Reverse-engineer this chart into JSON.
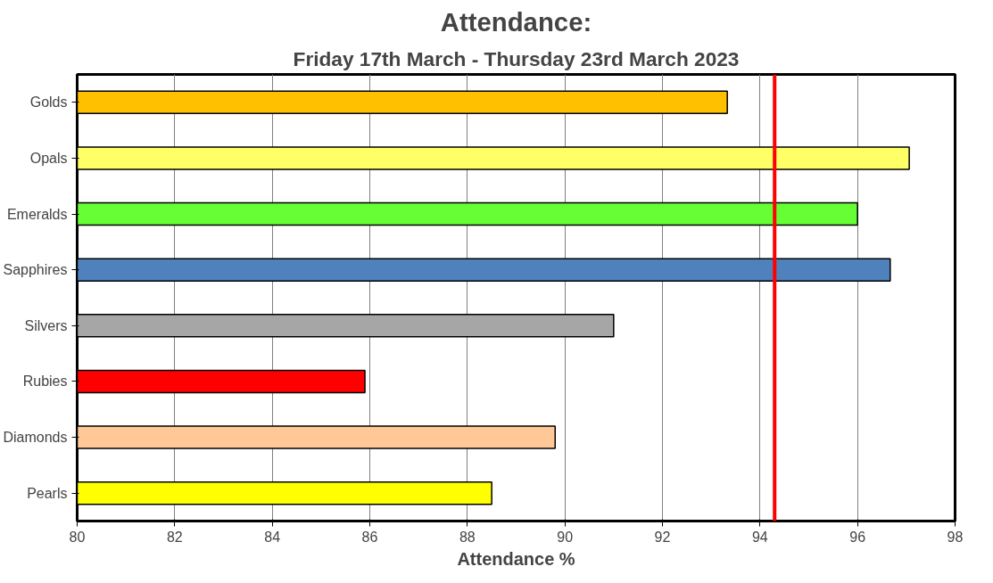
{
  "chart_data": {
    "type": "bar",
    "orientation": "horizontal",
    "title": "Attendance:",
    "subtitle": "Friday 17th March - Thursday 23rd March 2023",
    "xlabel": "Attendance %",
    "categories": [
      "Golds",
      "Opals",
      "Emeralds",
      "Sapphires",
      "Silvers",
      "Rubies",
      "Diamonds",
      "Pearls"
    ],
    "values": [
      93.33,
      97.06,
      96.0,
      96.67,
      91.0,
      85.9,
      89.8,
      88.5
    ],
    "colors": [
      "#ffc000",
      "#ffff66",
      "#66ff33",
      "#4f81bd",
      "#a6a6a6",
      "#ff0000",
      "#ffc896",
      "#ffff00"
    ],
    "xlim": [
      80,
      98
    ],
    "xticks": [
      80,
      82,
      84,
      86,
      88,
      90,
      92,
      94,
      96,
      98
    ],
    "grid": "x",
    "ref_lines": [
      {
        "axis": "x",
        "value": 94.3,
        "color": "#ff0000"
      }
    ]
  }
}
